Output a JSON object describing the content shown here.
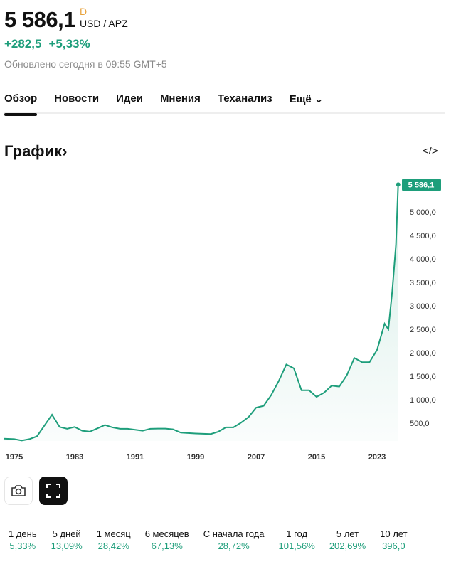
{
  "header": {
    "price": "5 586,1",
    "period_marker": "D",
    "currency": "USD / APZ",
    "change_abs": "+282,5",
    "change_pct": "+5,33%",
    "updated": "Обновлено сегодня в 09:55 GMT+5"
  },
  "tabs": [
    {
      "label": "Обзор"
    },
    {
      "label": "Новости"
    },
    {
      "label": "Идеи"
    },
    {
      "label": "Мнения"
    },
    {
      "label": "Теханализ"
    },
    {
      "label": "Ещё ⌄"
    }
  ],
  "section": {
    "title": "График›",
    "embed_icon": "</>"
  },
  "chart_data": {
    "type": "area",
    "title": "",
    "xlabel": "",
    "ylabel": "",
    "x_ticks": [
      "1975",
      "1983",
      "1991",
      "1999",
      "2007",
      "2015",
      "2023"
    ],
    "y_ticks": [
      "500,0",
      "1 000,0",
      "1 500,0",
      "2 000,0",
      "2 500,0",
      "3 000,0",
      "3 500,0",
      "4 000,0",
      "4 500,0",
      "5 000,0"
    ],
    "ylim": [
      0,
      5600
    ],
    "xlim": [
      1975,
      2026
    ],
    "last_value_label": "5 586,1",
    "color": "#1e9e7b",
    "grid": false,
    "y_axis": "right",
    "x": [
      1975,
      1976,
      1977,
      1978,
      1979,
      1980,
      1981,
      1982,
      1983,
      1984,
      1985,
      1986,
      1987,
      1988,
      1989,
      1990,
      1991,
      1992,
      1993,
      1994,
      1995,
      1996,
      1997,
      1998,
      1999,
      2000,
      2001,
      2002,
      2003,
      2004,
      2005,
      2006,
      2007,
      2008,
      2009,
      2010,
      2011,
      2012,
      2013,
      2014,
      2015,
      2016,
      2017,
      2018,
      2019,
      2020,
      2021,
      2022,
      2023,
      2024,
      2024.5,
      2025,
      2025.5,
      2025.8
    ],
    "y": [
      160,
      130,
      160,
      220,
      450,
      680,
      420,
      380,
      420,
      340,
      320,
      390,
      460,
      410,
      380,
      380,
      360,
      340,
      380,
      385,
      385,
      370,
      300,
      290,
      280,
      275,
      270,
      320,
      410,
      410,
      510,
      630,
      830,
      870,
      1100,
      1400,
      1750,
      1670,
      1200,
      1200,
      1060,
      1150,
      1300,
      1280,
      1520,
      1890,
      1800,
      1800,
      2060,
      2620,
      2500,
      3300,
      4300,
      5586.1
    ]
  },
  "toolbar": {
    "camera_icon": "camera-icon",
    "fullscreen_icon": "fullscreen-icon"
  },
  "performance": [
    {
      "label": "1 день",
      "value": "5,33%"
    },
    {
      "label": "5 дней",
      "value": "13,09%"
    },
    {
      "label": "1 месяц",
      "value": "28,42%"
    },
    {
      "label": "6 месяцев",
      "value": "67,13%"
    },
    {
      "label": "С начала года",
      "value": "28,72%"
    },
    {
      "label": "1 год",
      "value": "101,56%"
    },
    {
      "label": "5 лет",
      "value": "202,69%"
    },
    {
      "label": "10 лет",
      "value": "396,0"
    }
  ]
}
